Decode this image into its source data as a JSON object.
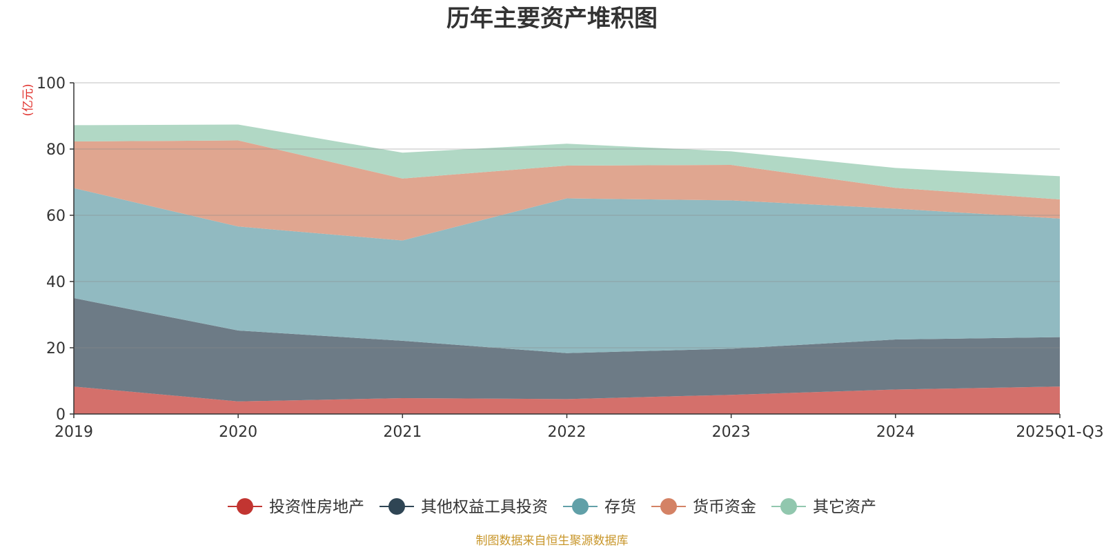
{
  "chart_data": {
    "type": "area",
    "stacked": true,
    "title": "历年主要资产堆积图",
    "unit_label": "(亿元)",
    "xlabel": "",
    "ylabel": "(亿元)",
    "ylim": [
      0,
      100
    ],
    "yticks": [
      0,
      20,
      40,
      60,
      80,
      100
    ],
    "categories": [
      "2019",
      "2020",
      "2021",
      "2022",
      "2023",
      "2024",
      "2025Q1-Q3"
    ],
    "series": [
      {
        "name": "投资性房地产",
        "color": "#c23531",
        "legend_color": "#c23531",
        "area_color": "#d4706b",
        "values": [
          8.3,
          3.8,
          4.8,
          4.5,
          5.8,
          7.4,
          8.3
        ]
      },
      {
        "name": "其他权益工具投资",
        "color": "#2f4554",
        "legend_color": "#2f4554",
        "area_color": "#6d7b86",
        "values": [
          26.7,
          21.4,
          17.3,
          13.9,
          13.9,
          15.1,
          14.9
        ]
      },
      {
        "name": "存货",
        "color": "#61a0a8",
        "legend_color": "#61a0a8",
        "area_color": "#91bac1",
        "values": [
          33.2,
          31.4,
          30.3,
          46.7,
          44.8,
          39.5,
          35.8
        ]
      },
      {
        "name": "货币资金",
        "color": "#d48265",
        "legend_color": "#d48265",
        "area_color": "#e0a690",
        "values": [
          14.1,
          26.0,
          18.7,
          9.9,
          10.7,
          6.3,
          5.8
        ]
      },
      {
        "name": "其它资产",
        "color": "#91c7ae",
        "legend_color": "#91c7ae",
        "area_color": "#b1d8c5",
        "values": [
          4.9,
          4.8,
          7.8,
          6.6,
          4.1,
          6.0,
          7.0
        ]
      }
    ],
    "legend_position": "bottom-center",
    "grid": true,
    "source_note": "制图数据来自恒生聚源数据库"
  }
}
